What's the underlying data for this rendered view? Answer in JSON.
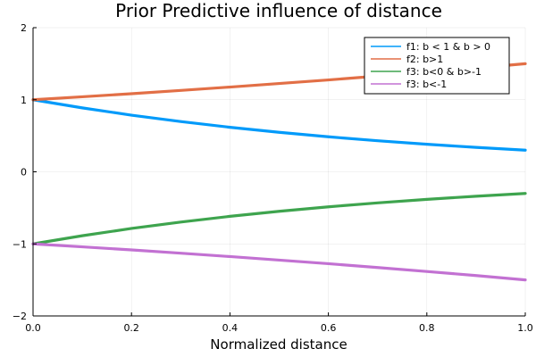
{
  "chart_data": {
    "type": "line",
    "title": "Prior Predictive influence of distance",
    "xlabel": "Normalized distance",
    "ylabel": "",
    "xlim": [
      0,
      1
    ],
    "ylim": [
      -2,
      2
    ],
    "x_ticks": [
      "0.0",
      "0.2",
      "0.4",
      "0.6",
      "0.8",
      "1.0"
    ],
    "y_ticks": [
      "-2",
      "-1",
      "0",
      "1",
      "2"
    ],
    "grid": true,
    "legend_position": "top-right",
    "x": [
      0.0,
      0.1,
      0.2,
      0.3,
      0.4,
      0.5,
      0.6,
      0.7,
      0.8,
      0.9,
      1.0
    ],
    "series": [
      {
        "name": "f1: b < 1 & b > 0",
        "color": "#009AFA",
        "values": [
          1.0,
          0.887,
          0.786,
          0.697,
          0.618,
          0.548,
          0.486,
          0.431,
          0.382,
          0.339,
          0.3
        ]
      },
      {
        "name": "f2: b>1",
        "color": "#E26F46",
        "values": [
          1.0,
          1.041,
          1.084,
          1.129,
          1.176,
          1.225,
          1.275,
          1.328,
          1.383,
          1.44,
          1.5
        ]
      },
      {
        "name": "f3: b<0 & b>-1",
        "color": "#3EA44E",
        "values": [
          -1.0,
          -0.887,
          -0.786,
          -0.697,
          -0.618,
          -0.548,
          -0.486,
          -0.431,
          -0.382,
          -0.339,
          -0.3
        ]
      },
      {
        "name": "f3: b<-1",
        "color": "#C271D2",
        "values": [
          -1.0,
          -1.041,
          -1.084,
          -1.129,
          -1.176,
          -1.225,
          -1.275,
          -1.328,
          -1.383,
          -1.44,
          -1.5
        ]
      }
    ]
  }
}
